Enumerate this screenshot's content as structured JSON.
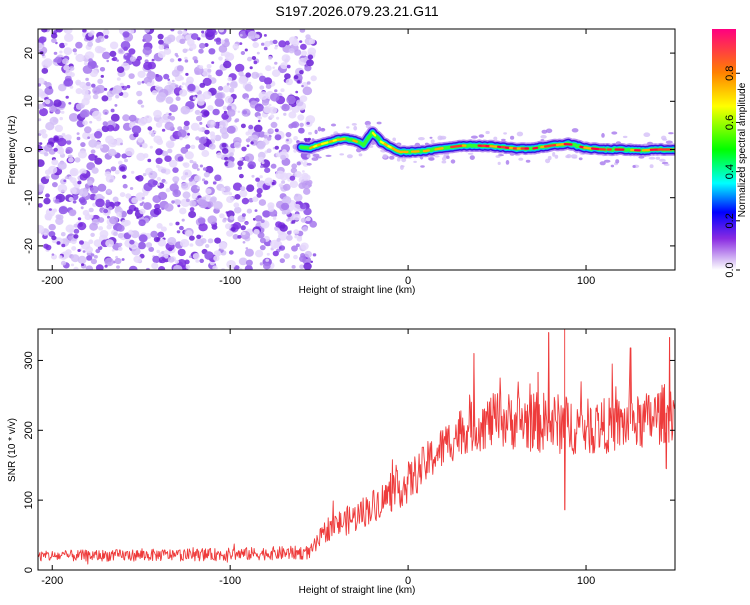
{
  "title": "S197.2026.079.23.21.G11",
  "chart_data": [
    {
      "type": "heatmap",
      "name": "spectrogram",
      "xlabel": "Height of straight line (km)",
      "ylabel": "Frequency (Hz)",
      "xlim": [
        -208,
        150
      ],
      "ylim": [
        -25,
        25
      ],
      "xticks": [
        -200,
        -100,
        0,
        100
      ],
      "xtick_labels": [
        "-200",
        "-100",
        "0",
        "100"
      ],
      "yticks": [
        20,
        10,
        0,
        -10,
        -20
      ],
      "ytick_labels": [
        "20",
        "10",
        "0",
        "-10",
        "-20"
      ],
      "noise_region_x": [
        -208,
        -57
      ],
      "signal_trace": [
        {
          "x": -60,
          "y": 0.5
        },
        {
          "x": -55,
          "y": 0.3
        },
        {
          "x": -50,
          "y": 1.0
        },
        {
          "x": -45,
          "y": 1.5
        },
        {
          "x": -40,
          "y": 2.0
        },
        {
          "x": -35,
          "y": 2.2
        },
        {
          "x": -30,
          "y": 1.8
        },
        {
          "x": -25,
          "y": 1.0
        },
        {
          "x": -20,
          "y": 3.5
        },
        {
          "x": -15,
          "y": 1.5
        },
        {
          "x": -10,
          "y": 0.5
        },
        {
          "x": -5,
          "y": -0.5
        },
        {
          "x": 0,
          "y": -0.5
        },
        {
          "x": 10,
          "y": -0.3
        },
        {
          "x": 20,
          "y": 0.3
        },
        {
          "x": 30,
          "y": 0.8
        },
        {
          "x": 40,
          "y": 0.8
        },
        {
          "x": 50,
          "y": 0.6
        },
        {
          "x": 60,
          "y": 0.2
        },
        {
          "x": 70,
          "y": 0.2
        },
        {
          "x": 80,
          "y": 0.8
        },
        {
          "x": 90,
          "y": 1.2
        },
        {
          "x": 100,
          "y": 0.3
        },
        {
          "x": 110,
          "y": 0.0
        },
        {
          "x": 120,
          "y": 0.0
        },
        {
          "x": 130,
          "y": -0.2
        },
        {
          "x": 140,
          "y": 0.0
        },
        {
          "x": 150,
          "y": 0.0
        }
      ],
      "colorbar": {
        "label": "Normalized spectral amplitude",
        "range": [
          0,
          0.98
        ],
        "ticks": [
          0.0,
          0.2,
          0.4,
          0.6,
          0.8
        ],
        "tick_labels": [
          "0.0",
          "0.2",
          "0.4",
          "0.6",
          "0.8"
        ],
        "colormap": "rainbow (violet to red)"
      }
    },
    {
      "type": "line",
      "name": "snr",
      "xlabel": "Height of straight line (km)",
      "ylabel": "SNR (10 * v/v)",
      "xlim": [
        -208,
        150
      ],
      "ylim": [
        0,
        345
      ],
      "xticks": [
        -200,
        -100,
        0,
        100
      ],
      "xtick_labels": [
        "-200",
        "-100",
        "0",
        "100"
      ],
      "yticks": [
        0,
        100,
        200,
        300
      ],
      "ytick_labels": [
        "0",
        "100",
        "200",
        "300"
      ],
      "color": "#ee3b3b",
      "envelope": [
        {
          "x": -208,
          "mean": 20,
          "spread": 8
        },
        {
          "x": -110,
          "mean": 22,
          "spread": 9
        },
        {
          "x": -55,
          "mean": 25,
          "spread": 10
        },
        {
          "x": -45,
          "mean": 60,
          "spread": 18
        },
        {
          "x": -30,
          "mean": 75,
          "spread": 22
        },
        {
          "x": -15,
          "mean": 100,
          "spread": 25
        },
        {
          "x": 0,
          "mean": 125,
          "spread": 30
        },
        {
          "x": 15,
          "mean": 165,
          "spread": 30
        },
        {
          "x": 30,
          "mean": 200,
          "spread": 35
        },
        {
          "x": 50,
          "mean": 215,
          "spread": 40
        },
        {
          "x": 80,
          "mean": 210,
          "spread": 45
        },
        {
          "x": 100,
          "mean": 205,
          "spread": 40
        },
        {
          "x": 130,
          "mean": 210,
          "spread": 40
        },
        {
          "x": 150,
          "mean": 230,
          "spread": 45
        }
      ],
      "peak_points": [
        {
          "x": 88,
          "y": 345
        },
        {
          "x": 79,
          "y": 340
        },
        {
          "x": 147,
          "y": 333
        },
        {
          "x": 37,
          "y": 310
        },
        {
          "x": 73,
          "y": 283
        },
        {
          "x": 125,
          "y": 318
        },
        {
          "x": 88,
          "y": 86
        },
        {
          "x": 145,
          "y": 145
        }
      ]
    }
  ]
}
